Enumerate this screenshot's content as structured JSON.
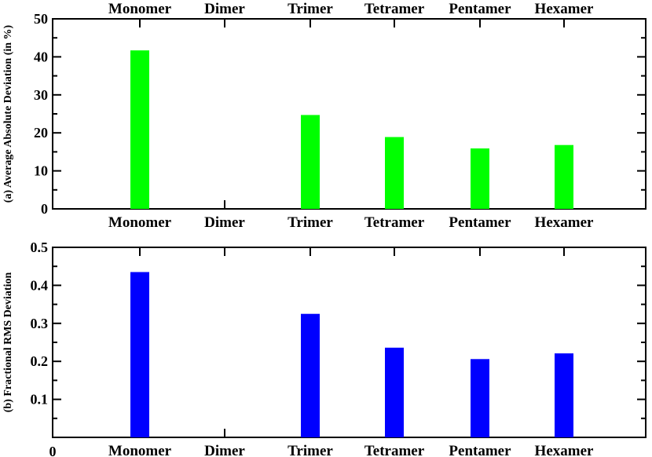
{
  "chart_data": [
    {
      "type": "bar",
      "title": "",
      "xlabel": "",
      "ylabel": "(a) Average Absolute Deviation (in %)",
      "categories": [
        "Monomer",
        "Dimer",
        "Trimer",
        "Tetramer",
        "Pentamer",
        "Hexamer"
      ],
      "values": [
        41.7,
        null,
        24.7,
        18.9,
        15.9,
        16.8
      ],
      "ylim": [
        0,
        50
      ],
      "yticks": [
        "0",
        "10",
        "20",
        "30",
        "40",
        "50"
      ],
      "color": "#00ff00",
      "grid": false,
      "top_category_labels": true
    },
    {
      "type": "bar",
      "title": "",
      "xlabel": "",
      "ylabel": "(b) Fractional RMS Deviation",
      "categories": [
        "Monomer",
        "Dimer",
        "Trimer",
        "Tetramer",
        "Pentamer",
        "Hexamer"
      ],
      "values": [
        0.435,
        null,
        0.325,
        0.236,
        0.206,
        0.221
      ],
      "ylim": [
        0,
        0.5
      ],
      "yticks": [
        "0",
        "0.1",
        "0.2",
        "0.3",
        "0.4",
        "0.5"
      ],
      "x_origin_label": "0",
      "color": "#0000ff",
      "grid": false
    }
  ]
}
